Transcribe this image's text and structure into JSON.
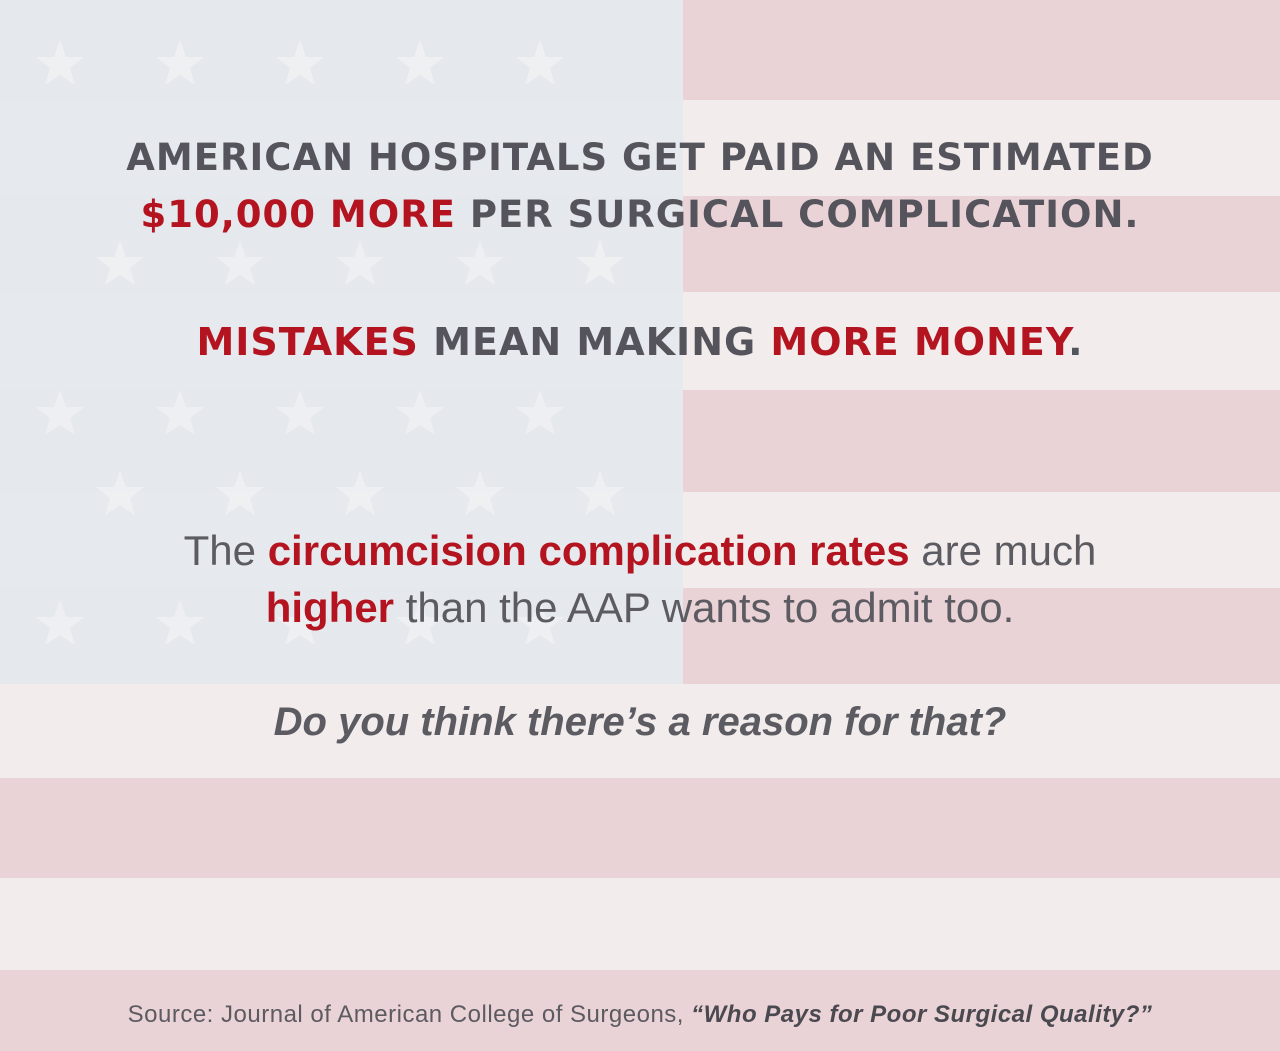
{
  "headline": {
    "line1": "AMERICAN HOSPITALS GET PAID AN ESTIMATED",
    "line2_red": "$10,000 MORE",
    "line2_rest": " PER SURGICAL COMPLICATION.",
    "line3_red1": "MISTAKES",
    "line3_mid": " MEAN MAKING ",
    "line3_red2": "MORE MONEY",
    "line3_end": "."
  },
  "body": {
    "line1_pre": "The ",
    "line1_red": "circumcision complication rates",
    "line1_post": " are much",
    "line2_red": "higher",
    "line2_post": " than the AAP wants to admit too."
  },
  "question": "Do you think there’s a reason for that?",
  "source": {
    "label": "Source: ",
    "journal": "Journal of American College of Surgeons, ",
    "title": "“Who Pays for Poor Surgical Quality?”"
  },
  "colors": {
    "accent_red": "#b3141f",
    "text_gray": "#55545c",
    "stripe_red": "#e4c7cb",
    "stripe_white": "#f4f2f1",
    "canton_blue": "#dde3ea"
  }
}
